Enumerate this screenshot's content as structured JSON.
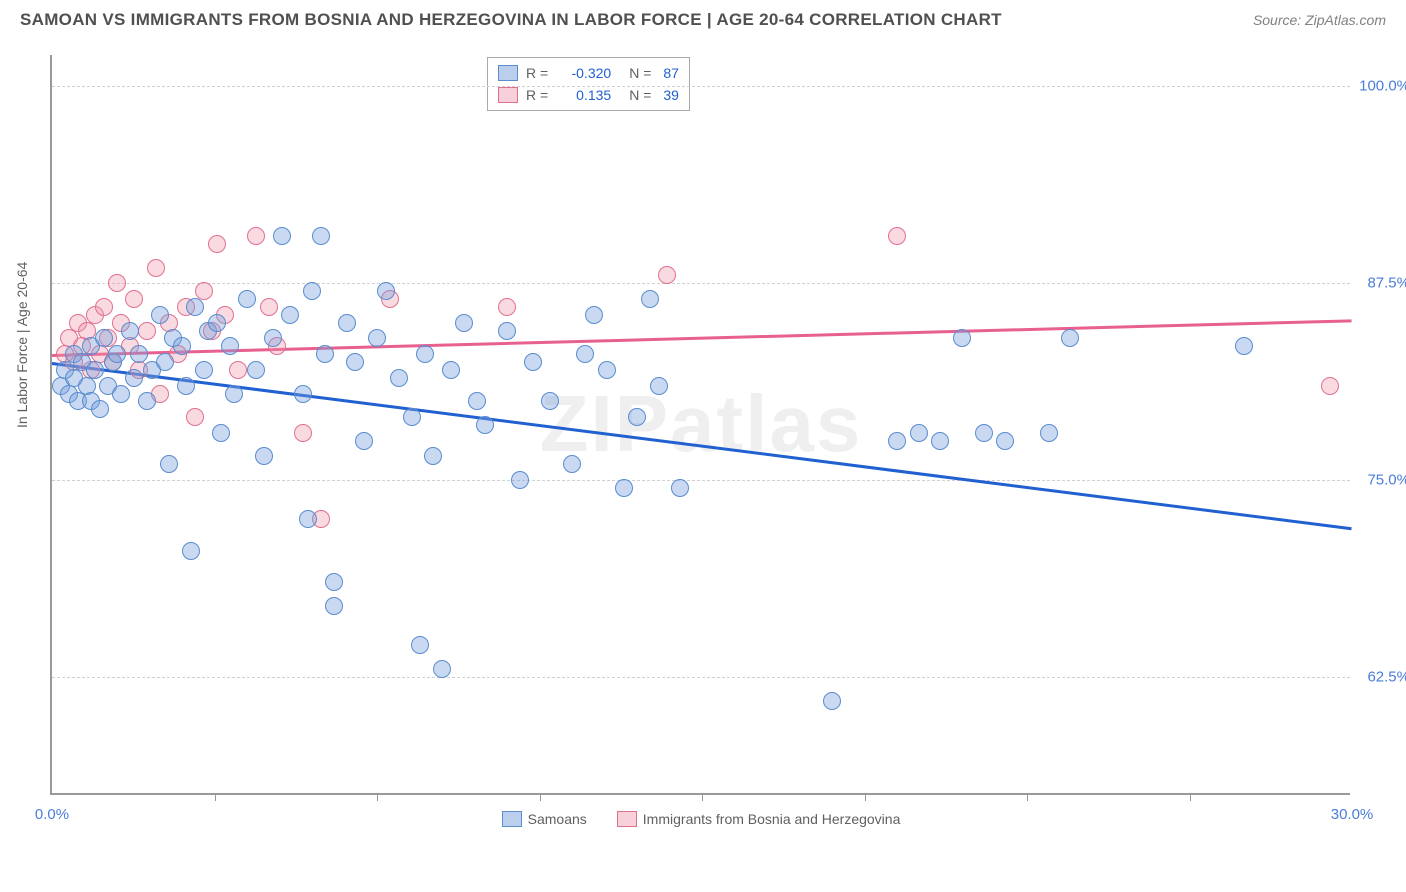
{
  "title": "SAMOAN VS IMMIGRANTS FROM BOSNIA AND HERZEGOVINA IN LABOR FORCE | AGE 20-64 CORRELATION CHART",
  "source": "Source: ZipAtlas.com",
  "watermark": "ZIPatlas",
  "y_axis_title": "In Labor Force | Age 20-64",
  "chart_type": "scatter",
  "x_range": [
    0,
    30
  ],
  "y_range": [
    55,
    102
  ],
  "x_ticks_major": [
    0,
    30
  ],
  "x_ticks_minor": [
    3.75,
    7.5,
    11.25,
    15,
    18.75,
    22.5,
    26.25
  ],
  "y_ticks": [
    62.5,
    75.0,
    87.5,
    100.0
  ],
  "colors": {
    "series_blue_fill": "rgba(120,160,220,0.4)",
    "series_blue_stroke": "#5a8cd0",
    "series_pink_fill": "rgba(240,150,170,0.35)",
    "series_pink_stroke": "#e07090",
    "trend_blue": "#2060d0",
    "trend_pink": "#e86090",
    "grid": "#d0d0d0",
    "axis": "#999999",
    "tick_label": "#4a7dd8",
    "title_color": "#505050"
  },
  "stats_legend": {
    "rows": [
      {
        "swatch": "blue",
        "r_label": "R =",
        "r_val": "-0.320",
        "n_label": "N =",
        "n_val": "87"
      },
      {
        "swatch": "pink",
        "r_label": "R =",
        "r_val": "0.135",
        "n_label": "N =",
        "n_val": "39"
      }
    ]
  },
  "bottom_legend": [
    {
      "swatch": "blue",
      "label": "Samoans"
    },
    {
      "swatch": "pink",
      "label": "Immigrants from Bosnia and Herzegovina"
    }
  ],
  "trend_lines": {
    "blue": {
      "x1": 0,
      "y1": 82.5,
      "x2": 30,
      "y2": 72.0
    },
    "pink": {
      "x1": 0,
      "y1": 83.0,
      "x2": 30,
      "y2": 85.2
    }
  },
  "points_blue": [
    [
      0.2,
      81
    ],
    [
      0.3,
      82
    ],
    [
      0.4,
      80.5
    ],
    [
      0.5,
      83
    ],
    [
      0.5,
      81.5
    ],
    [
      0.6,
      80
    ],
    [
      0.7,
      82.5
    ],
    [
      0.8,
      81
    ],
    [
      0.9,
      83.5
    ],
    [
      0.9,
      80
    ],
    [
      1.0,
      82
    ],
    [
      1.1,
      79.5
    ],
    [
      1.2,
      84
    ],
    [
      1.3,
      81
    ],
    [
      1.4,
      82.5
    ],
    [
      1.5,
      83
    ],
    [
      1.6,
      80.5
    ],
    [
      1.8,
      84.5
    ],
    [
      1.9,
      81.5
    ],
    [
      2.0,
      83
    ],
    [
      2.2,
      80
    ],
    [
      2.3,
      82
    ],
    [
      2.5,
      85.5
    ],
    [
      2.6,
      82.5
    ],
    [
      2.7,
      76
    ],
    [
      2.8,
      84
    ],
    [
      3.0,
      83.5
    ],
    [
      3.1,
      81
    ],
    [
      3.2,
      70.5
    ],
    [
      3.3,
      86
    ],
    [
      3.5,
      82
    ],
    [
      3.6,
      84.5
    ],
    [
      3.8,
      85
    ],
    [
      3.9,
      78
    ],
    [
      4.1,
      83.5
    ],
    [
      4.2,
      80.5
    ],
    [
      4.5,
      86.5
    ],
    [
      4.7,
      82
    ],
    [
      4.9,
      76.5
    ],
    [
      5.1,
      84
    ],
    [
      5.3,
      90.5
    ],
    [
      5.5,
      85.5
    ],
    [
      5.8,
      80.5
    ],
    [
      5.9,
      72.5
    ],
    [
      6.0,
      87
    ],
    [
      6.3,
      83
    ],
    [
      6.5,
      68.5
    ],
    [
      6.8,
      85
    ],
    [
      6.5,
      67
    ],
    [
      7.0,
      82.5
    ],
    [
      7.2,
      77.5
    ],
    [
      7.5,
      84
    ],
    [
      7.7,
      87
    ],
    [
      8.0,
      81.5
    ],
    [
      8.3,
      79
    ],
    [
      8.5,
      64.5
    ],
    [
      8.6,
      83
    ],
    [
      8.8,
      76.5
    ],
    [
      9.0,
      63
    ],
    [
      9.2,
      82
    ],
    [
      9.5,
      85
    ],
    [
      9.8,
      80
    ],
    [
      10.0,
      78.5
    ],
    [
      10.5,
      84.5
    ],
    [
      10.8,
      75
    ],
    [
      11.1,
      82.5
    ],
    [
      11.5,
      80
    ],
    [
      12.0,
      76
    ],
    [
      12.3,
      83
    ],
    [
      12.5,
      85.5
    ],
    [
      12.8,
      82
    ],
    [
      13.2,
      74.5
    ],
    [
      13.5,
      79
    ],
    [
      14.0,
      81
    ],
    [
      14.5,
      74.5
    ],
    [
      18.0,
      61
    ],
    [
      19.5,
      77.5
    ],
    [
      20.0,
      78
    ],
    [
      20.5,
      77.5
    ],
    [
      21.0,
      84
    ],
    [
      21.5,
      78
    ],
    [
      22.0,
      77.5
    ],
    [
      23.0,
      78
    ],
    [
      23.5,
      84
    ],
    [
      27.5,
      83.5
    ],
    [
      13.8,
      86.5
    ],
    [
      6.2,
      90.5
    ]
  ],
  "points_pink": [
    [
      0.3,
      83
    ],
    [
      0.4,
      84
    ],
    [
      0.5,
      82.5
    ],
    [
      0.6,
      85
    ],
    [
      0.7,
      83.5
    ],
    [
      0.8,
      84.5
    ],
    [
      0.9,
      82
    ],
    [
      1.0,
      85.5
    ],
    [
      1.1,
      83
    ],
    [
      1.2,
      86
    ],
    [
      1.3,
      84
    ],
    [
      1.4,
      82.5
    ],
    [
      1.5,
      87.5
    ],
    [
      1.6,
      85
    ],
    [
      1.8,
      83.5
    ],
    [
      1.9,
      86.5
    ],
    [
      2.0,
      82
    ],
    [
      2.2,
      84.5
    ],
    [
      2.4,
      88.5
    ],
    [
      2.5,
      80.5
    ],
    [
      2.7,
      85
    ],
    [
      2.9,
      83
    ],
    [
      3.1,
      86
    ],
    [
      3.3,
      79
    ],
    [
      3.5,
      87
    ],
    [
      3.7,
      84.5
    ],
    [
      3.8,
      90
    ],
    [
      4.0,
      85.5
    ],
    [
      4.3,
      82
    ],
    [
      4.7,
      90.5
    ],
    [
      5.0,
      86
    ],
    [
      5.2,
      83.5
    ],
    [
      5.8,
      78
    ],
    [
      6.2,
      72.5
    ],
    [
      7.8,
      86.5
    ],
    [
      10.5,
      86
    ],
    [
      14.2,
      88
    ],
    [
      19.5,
      90.5
    ],
    [
      29.5,
      81
    ]
  ]
}
